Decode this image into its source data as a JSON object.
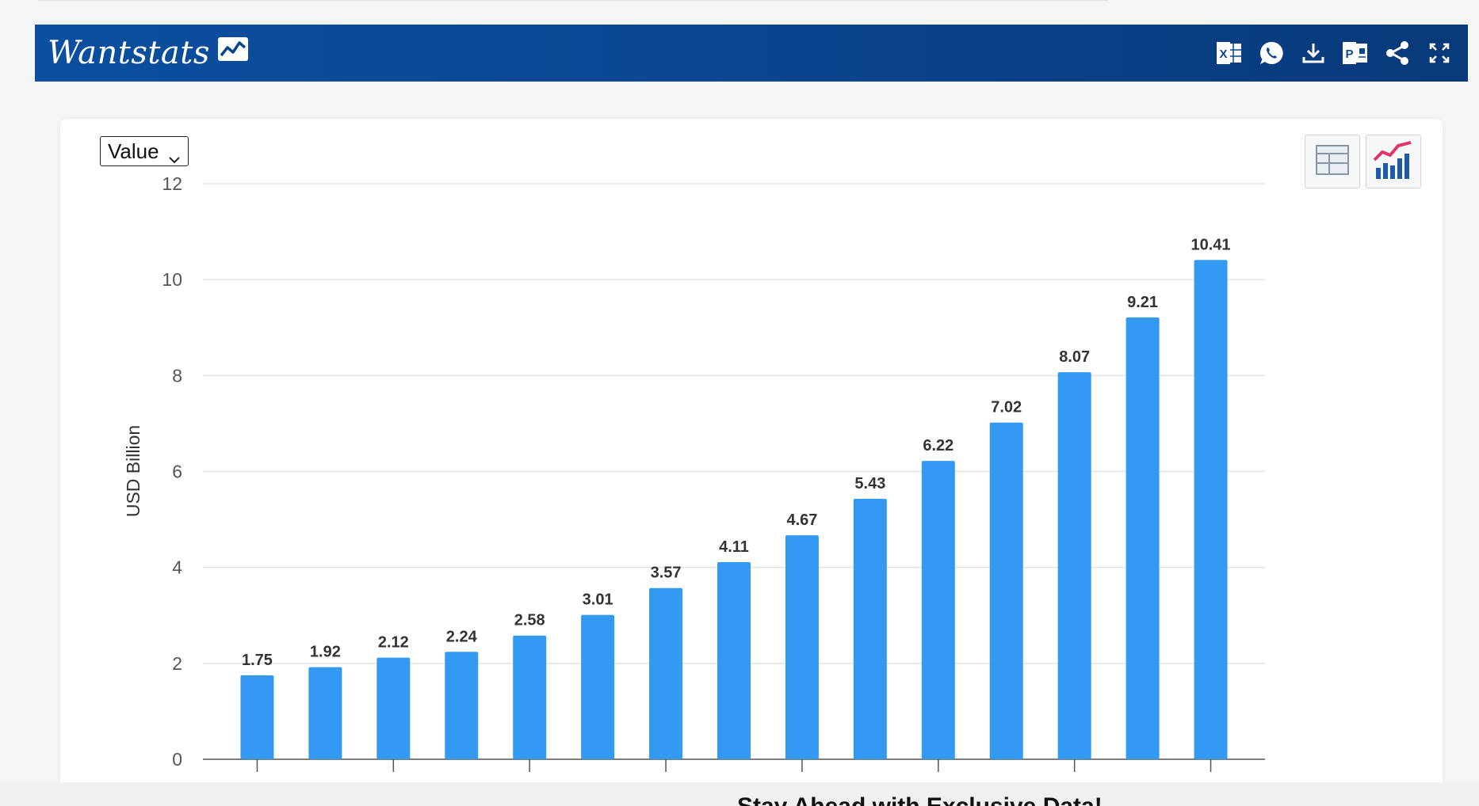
{
  "brand": {
    "name": "Wantstats"
  },
  "header": {
    "tools": [
      {
        "name": "excel-icon"
      },
      {
        "name": "whatsapp-icon"
      },
      {
        "name": "download-icon"
      },
      {
        "name": "powerpoint-icon"
      },
      {
        "name": "share-icon"
      },
      {
        "name": "fullscreen-icon"
      }
    ]
  },
  "controls": {
    "metric_select": "Value",
    "view_buttons": [
      "table-view-icon",
      "chart-view-icon"
    ]
  },
  "chart_data": {
    "type": "bar",
    "categories": [
      "",
      "",
      "",
      "",
      "",
      "",
      "",
      "",
      "",
      "",
      "",
      "",
      "",
      "",
      ""
    ],
    "values": [
      1.75,
      1.92,
      2.12,
      2.24,
      2.58,
      3.01,
      3.57,
      4.11,
      4.67,
      5.43,
      6.22,
      7.02,
      8.07,
      9.21,
      10.41
    ],
    "title": "",
    "xlabel": "",
    "ylabel": "USD Billion",
    "ylim": [
      0,
      12
    ],
    "yticks": [
      0,
      2,
      4,
      6,
      8,
      10,
      12
    ],
    "grid": true,
    "bar_color": "#3399f3",
    "data_labels": true
  },
  "footer": {
    "partial_text": "Stay Ahead with Exclusive Data!"
  }
}
